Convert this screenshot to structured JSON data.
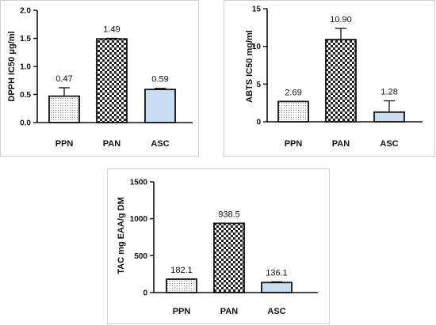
{
  "chart_data": [
    {
      "type": "bar",
      "ylabel": "DPPH IC50 μg/ml",
      "categories": [
        "PPN",
        "PAN",
        "ASC"
      ],
      "values": [
        0.47,
        1.49,
        0.59
      ],
      "error": [
        0.15,
        0.01,
        0.02
      ],
      "value_labels": [
        "0.47",
        "1.49",
        "0.59"
      ],
      "ylim": [
        0,
        2.0
      ],
      "yticks": [
        "0.0",
        "0.5",
        "1.0",
        "1.5",
        "2.0"
      ],
      "grid": false
    },
    {
      "type": "bar",
      "ylabel": "ABTS IC50 mg/ml",
      "categories": [
        "PPN",
        "PAN",
        "ASC"
      ],
      "values": [
        2.69,
        10.9,
        1.28
      ],
      "error": [
        0.0,
        1.5,
        1.5
      ],
      "value_labels": [
        "2.69",
        "10.90",
        "1.28"
      ],
      "ylim": [
        0,
        15
      ],
      "yticks": [
        "0",
        "5",
        "10",
        "15"
      ],
      "grid": false
    },
    {
      "type": "bar",
      "ylabel": "TAC mg EAA/g DM",
      "categories": [
        "PPN",
        "PAN",
        "ASC"
      ],
      "values": [
        182.1,
        938.5,
        136.1
      ],
      "error": [
        0.0,
        0.0,
        10.0
      ],
      "value_labels": [
        "182.1",
        "938.5",
        "136.1"
      ],
      "ylim": [
        0,
        1500
      ],
      "yticks": [
        "0",
        "500",
        "1000",
        "1500"
      ],
      "grid": false
    }
  ],
  "bar_fills": [
    "dots",
    "checker",
    "#c9ddf2"
  ]
}
